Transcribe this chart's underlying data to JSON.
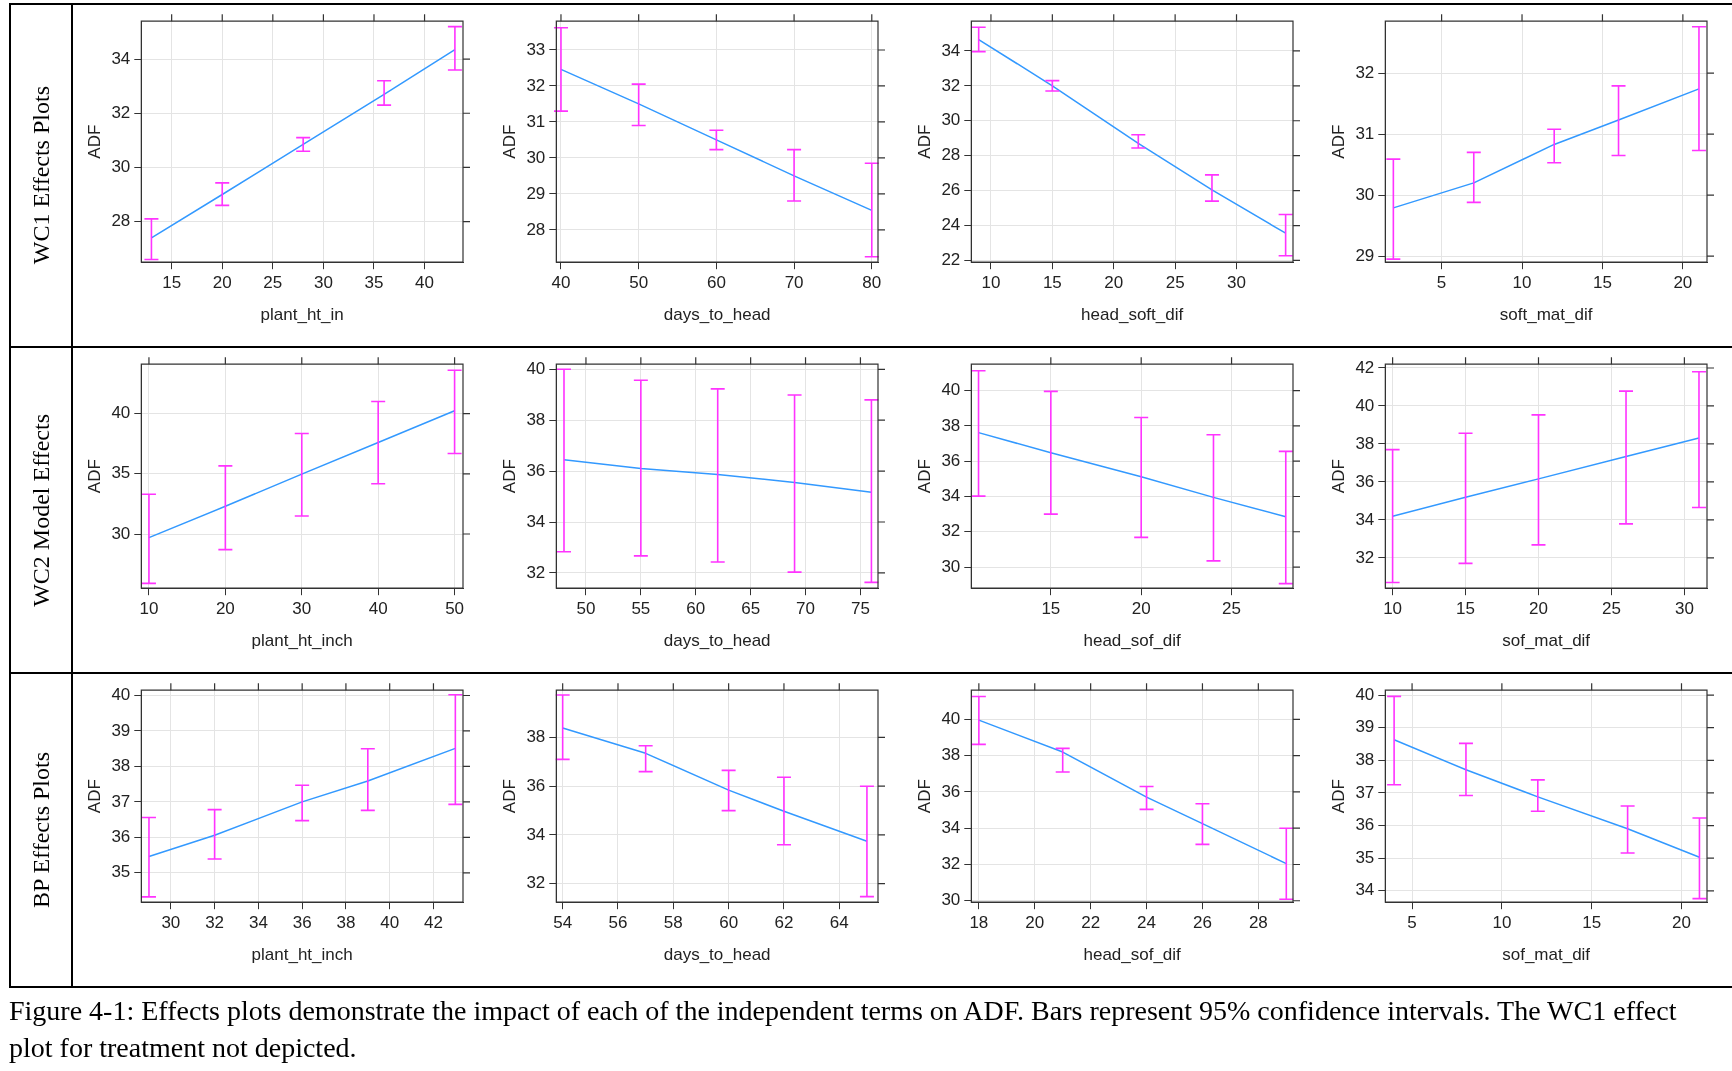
{
  "chart_data": [
    {
      "type": "line",
      "xlabel": "plant_ht_in",
      "ylabel": "ADF",
      "annotations": [
        "WC1 Effects Plots"
      ],
      "xlim": [
        12,
        43.8
      ],
      "xticks": [
        15,
        20,
        25,
        30,
        35,
        40
      ],
      "ylim": [
        26.5,
        35.4
      ],
      "yticks": [
        28,
        30,
        32,
        34
      ],
      "grid": true,
      "series": [
        {
          "color": "#3399ff",
          "x": [
            13,
            20,
            28,
            36,
            43
          ],
          "values": [
            27.4,
            29.0,
            30.85,
            32.7,
            34.35
          ],
          "errors": [
            [
              26.6,
              28.1
            ],
            [
              28.6,
              29.43
            ],
            [
              30.6,
              31.1
            ],
            [
              32.3,
              33.2
            ],
            [
              33.6,
              35.2
            ]
          ]
        }
      ]
    },
    {
      "type": "line",
      "xlabel": "days_to_head",
      "ylabel": "ADF",
      "xlim": [
        39.4,
        80.8
      ],
      "xticks": [
        40,
        50,
        60,
        70,
        80
      ],
      "ylim": [
        27.1,
        33.8
      ],
      "yticks": [
        28,
        29,
        30,
        31,
        32,
        33
      ],
      "grid": true,
      "series": [
        {
          "color": "#3399ff",
          "x": [
            40,
            50,
            60,
            70,
            80
          ],
          "values": [
            32.46,
            31.5,
            30.5,
            29.5,
            28.54
          ],
          "errors": [
            [
              31.3,
              33.62
            ],
            [
              30.9,
              32.05
            ],
            [
              30.23,
              30.77
            ],
            [
              28.8,
              30.23
            ],
            [
              27.25,
              29.85
            ]
          ]
        }
      ]
    },
    {
      "type": "line",
      "xlabel": "head_soft_dif",
      "ylabel": "ADF",
      "xlim": [
        8.4,
        34.6
      ],
      "xticks": [
        10,
        15,
        20,
        25,
        30
      ],
      "ylim": [
        21.9,
        35.7
      ],
      "yticks": [
        22,
        24,
        26,
        28,
        30,
        32,
        34
      ],
      "grid": true,
      "series": [
        {
          "color": "#3399ff",
          "x": [
            9,
            15,
            22,
            28,
            34
          ],
          "values": [
            34.65,
            32.0,
            28.7,
            26.04,
            23.56
          ],
          "errors": [
            [
              33.96,
              35.35
            ],
            [
              31.7,
              32.3
            ],
            [
              28.44,
              29.2
            ],
            [
              25.4,
              26.9
            ],
            [
              22.27,
              24.63
            ]
          ]
        }
      ]
    },
    {
      "type": "line",
      "xlabel": "soft_mat_dif",
      "ylabel": "ADF",
      "xlim": [
        1.5,
        21.5
      ],
      "xticks": [
        5,
        10,
        15,
        20
      ],
      "ylim": [
        28.9,
        32.85
      ],
      "yticks": [
        29,
        30,
        31,
        32
      ],
      "grid": true,
      "series": [
        {
          "color": "#3399ff",
          "x": [
            2,
            7,
            12,
            16,
            21
          ],
          "values": [
            29.79,
            30.2,
            30.83,
            31.23,
            31.74
          ],
          "errors": [
            [
              28.95,
              30.59
            ],
            [
              29.88,
              30.7
            ],
            [
              30.53,
              31.08
            ],
            [
              30.65,
              31.79
            ],
            [
              30.73,
              32.76
            ]
          ]
        }
      ]
    },
    {
      "type": "line",
      "xlabel": "plant_ht_inch",
      "ylabel": "ADF",
      "annotations": [
        "WC2 Model Effects"
      ],
      "xlim": [
        9,
        51.1
      ],
      "xticks": [
        10,
        20,
        30,
        40,
        50
      ],
      "ylim": [
        25.5,
        44.1
      ],
      "yticks": [
        30,
        35,
        40
      ],
      "grid": true,
      "series": [
        {
          "color": "#3399ff",
          "x": [
            10,
            20,
            30,
            40,
            50
          ],
          "values": [
            29.7,
            32.3,
            34.97,
            37.6,
            40.23
          ],
          "errors": [
            [
              25.9,
              33.3
            ],
            [
              28.7,
              35.66
            ],
            [
              31.49,
              38.34
            ],
            [
              34.17,
              41.0
            ],
            [
              36.69,
              43.6
            ]
          ]
        }
      ]
    },
    {
      "type": "line",
      "xlabel": "days_to_head",
      "ylabel": "ADF",
      "xlim": [
        47.3,
        76.6
      ],
      "xticks": [
        50,
        55,
        60,
        65,
        70,
        75
      ],
      "ylim": [
        31.4,
        40.2
      ],
      "yticks": [
        32,
        34,
        36,
        38,
        40
      ],
      "grid": true,
      "series": [
        {
          "color": "#3399ff",
          "x": [
            48,
            55,
            62,
            69,
            76
          ],
          "values": [
            36.45,
            36.1,
            35.87,
            35.55,
            35.17
          ],
          "errors": [
            [
              32.83,
              40.0
            ],
            [
              32.67,
              39.57
            ],
            [
              32.43,
              39.23
            ],
            [
              32.03,
              38.99
            ],
            [
              31.63,
              38.8
            ]
          ]
        }
      ]
    },
    {
      "type": "line",
      "xlabel": "head_sof_dif",
      "ylabel": "ADF",
      "xlim": [
        10.6,
        28.4
      ],
      "xticks": [
        15,
        20,
        25
      ],
      "ylim": [
        28.8,
        41.5
      ],
      "yticks": [
        30,
        32,
        34,
        36,
        38,
        40
      ],
      "grid": true,
      "series": [
        {
          "color": "#3399ff",
          "x": [
            11,
            15,
            20,
            24,
            28
          ],
          "values": [
            37.62,
            36.48,
            35.12,
            33.95,
            32.85
          ],
          "errors": [
            [
              34.02,
              41.13
            ],
            [
              33.0,
              39.96
            ],
            [
              31.68,
              38.48
            ],
            [
              30.35,
              37.5
            ],
            [
              29.06,
              36.56
            ]
          ]
        }
      ]
    },
    {
      "type": "line",
      "xlabel": "sof_mat_dif",
      "ylabel": "ADF",
      "xlim": [
        9.5,
        31.55
      ],
      "xticks": [
        10,
        15,
        20,
        25,
        30
      ],
      "ylim": [
        30.4,
        42.2
      ],
      "yticks": [
        32,
        34,
        36,
        38,
        40,
        42
      ],
      "grid": true,
      "series": [
        {
          "color": "#3399ff",
          "x": [
            10,
            15,
            20,
            26,
            31
          ],
          "values": [
            34.19,
            35.19,
            36.16,
            37.34,
            38.31
          ],
          "errors": [
            [
              30.7,
              37.7
            ],
            [
              31.71,
              38.56
            ],
            [
              32.68,
              39.53
            ],
            [
              33.79,
              40.78
            ],
            [
              34.65,
              41.8
            ]
          ]
        }
      ]
    },
    {
      "type": "line",
      "xlabel": "plant_ht_inch",
      "ylabel": "ADF",
      "annotations": [
        "BP Effects Plots"
      ],
      "xlim": [
        28.65,
        43.35
      ],
      "xticks": [
        30,
        32,
        34,
        36,
        38,
        40,
        42
      ],
      "ylim": [
        34.17,
        40.15
      ],
      "yticks": [
        35,
        36,
        37,
        38,
        39,
        40
      ],
      "grid": true,
      "series": [
        {
          "color": "#3399ff",
          "x": [
            29,
            32,
            36,
            39,
            43
          ],
          "values": [
            35.46,
            36.06,
            37.0,
            37.59,
            38.51
          ],
          "errors": [
            [
              34.32,
              36.56
            ],
            [
              35.39,
              36.78
            ],
            [
              36.47,
              37.47
            ],
            [
              36.76,
              38.5
            ],
            [
              36.93,
              40.02
            ]
          ]
        }
      ]
    },
    {
      "type": "line",
      "xlabel": "days_to_head",
      "ylabel": "ADF",
      "xlim": [
        53.77,
        65.4
      ],
      "xticks": [
        54,
        56,
        58,
        60,
        62,
        64
      ],
      "ylim": [
        31.24,
        39.94
      ],
      "yticks": [
        32,
        34,
        36,
        38
      ],
      "grid": true,
      "series": [
        {
          "color": "#3399ff",
          "x": [
            54,
            57,
            60,
            62,
            65
          ],
          "values": [
            38.39,
            37.35,
            35.84,
            34.97,
            33.74
          ],
          "errors": [
            [
              37.1,
              39.74
            ],
            [
              36.6,
              37.66
            ],
            [
              35.0,
              36.65
            ],
            [
              33.6,
              36.37
            ],
            [
              31.47,
              36.0
            ]
          ]
        }
      ]
    },
    {
      "type": "line",
      "xlabel": "head_sof_dif",
      "ylabel": "ADF",
      "xlim": [
        17.73,
        29.24
      ],
      "xticks": [
        18,
        20,
        22,
        24,
        26,
        28
      ],
      "ylim": [
        29.92,
        41.61
      ],
      "yticks": [
        30,
        32,
        34,
        36,
        38,
        40
      ],
      "grid": true,
      "series": [
        {
          "color": "#3399ff",
          "x": [
            18,
            21,
            24,
            26,
            29
          ],
          "values": [
            39.96,
            38.2,
            35.71,
            34.25,
            32.05
          ],
          "errors": [
            [
              38.62,
              41.26
            ],
            [
              37.1,
              38.4
            ],
            [
              35.04,
              36.3
            ],
            [
              33.11,
              35.35
            ],
            [
              30.08,
              34.0
            ]
          ]
        }
      ]
    },
    {
      "type": "line",
      "xlabel": "sof_mat_dif",
      "ylabel": "ADF",
      "xlim": [
        3.51,
        21.42
      ],
      "xticks": [
        5,
        10,
        15,
        20
      ],
      "ylim": [
        33.65,
        40.15
      ],
      "yticks": [
        34,
        35,
        36,
        37,
        38,
        39,
        40
      ],
      "grid": true,
      "series": [
        {
          "color": "#3399ff",
          "x": [
            4,
            8,
            12,
            17,
            21
          ],
          "values": [
            38.63,
            37.71,
            36.88,
            35.9,
            35.03
          ],
          "errors": [
            [
              37.25,
              39.96
            ],
            [
              36.92,
              38.52
            ],
            [
              36.44,
              37.4
            ],
            [
              35.16,
              36.6
            ],
            [
              33.76,
              36.23
            ]
          ]
        }
      ]
    },
    {
      "type": "other",
      "annotations": [
        "Figure 4-1: Effects plots demonstrate the impact of each of the independent terms on ADF. Bars represent 95% confidence intervals. The WC1 effect plot for treatment not depicted."
      ]
    }
  ]
}
